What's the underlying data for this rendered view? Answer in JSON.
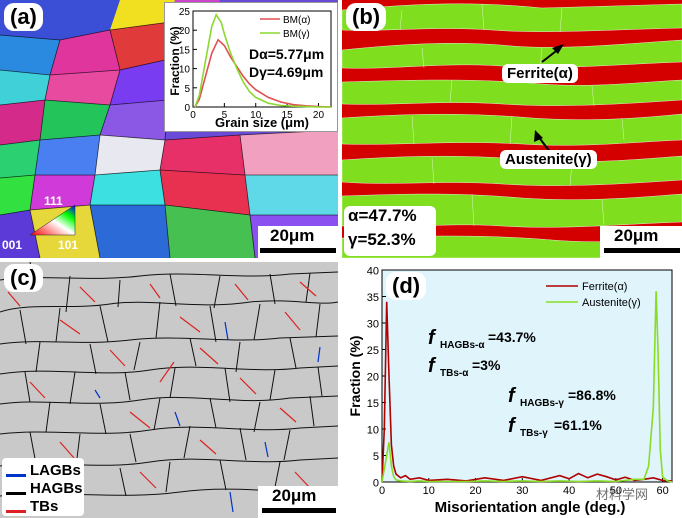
{
  "panels": {
    "a": {
      "label": "(a)",
      "inset": {
        "ylabel": "Fraction (%)",
        "xlabel": "Grain size (μm)",
        "yticks": [
          "0",
          "5",
          "10",
          "15",
          "20",
          "25"
        ],
        "xticks": [
          "0",
          "5",
          "10",
          "15",
          "20"
        ],
        "legend": [
          "BM(α)",
          "BM(γ)"
        ],
        "d_alpha": "Dα=5.77μm",
        "d_gamma": "Dγ=4.69μm"
      },
      "ipf": {
        "top": "111",
        "left": "001",
        "right": "101"
      },
      "scale": "20μm"
    },
    "b": {
      "label": "(b)",
      "ferrite_label": "Ferrite(α)",
      "austenite_label": "Austenite(γ)",
      "alpha_frac": "α=47.7%",
      "gamma_frac": "γ=52.3%",
      "scale": "20μm"
    },
    "c": {
      "label": "(c)",
      "legend": [
        "LAGBs",
        "HAGBs",
        "TBs"
      ],
      "scale": "20μm"
    },
    "d": {
      "label": "(d)",
      "legend": [
        "Ferrite(α)",
        "Austenite(γ)"
      ],
      "annotations": {
        "f_hagbs_alpha": "=43.7%",
        "f_tbs_alpha": "=3%",
        "f_hagbs_gamma": "=86.8%",
        "f_tbs_gamma": "=61.1%",
        "sub_hagbs_alpha": "HAGBs-α",
        "sub_tbs_alpha": "TBs-α",
        "sub_hagbs_gamma": "HAGBs-γ",
        "sub_tbs_gamma": "TBs-γ",
        "f": "f"
      },
      "watermark": "材料学网"
    }
  },
  "colors": {
    "ferrite": "#d40000",
    "austenite": "#7fdf1f",
    "lagb": "#0033cc",
    "hagb": "#000000",
    "tb": "#dd2222",
    "chart_bg": "#dff4fb"
  },
  "chart_data": [
    {
      "type": "line",
      "xlabel": "Grain size (μm)",
      "ylabel": "Fraction (%)",
      "xlim": [
        0,
        22
      ],
      "ylim": [
        0,
        25
      ],
      "series": [
        {
          "name": "BM(α)",
          "color": "#e05050",
          "x": [
            0.3,
            1,
            2,
            3,
            4,
            5,
            6,
            7,
            8,
            9,
            10,
            12,
            14,
            16,
            18,
            20,
            22
          ],
          "y": [
            0,
            2,
            8,
            14,
            17.5,
            16,
            13,
            10.5,
            8,
            6,
            4.5,
            2.5,
            1.3,
            0.6,
            0.3,
            0.1,
            0
          ]
        },
        {
          "name": "BM(γ)",
          "color": "#8cd830",
          "x": [
            0.3,
            1,
            2,
            3,
            3.7,
            4.5,
            5,
            6,
            7,
            8,
            9,
            10,
            12,
            14,
            16,
            18,
            20,
            22
          ],
          "y": [
            0,
            3,
            12,
            21,
            24,
            22,
            19,
            14,
            10,
            6.5,
            4,
            2.5,
            1,
            0.4,
            0.2,
            0.1,
            0,
            0
          ]
        }
      ]
    },
    {
      "type": "line",
      "xlabel": "Misorientation angle (deg.)",
      "ylabel": "Fraction (%)",
      "xlim": [
        0,
        62
      ],
      "ylim": [
        0,
        40
      ],
      "xticks": [
        0,
        10,
        20,
        30,
        40,
        50,
        60
      ],
      "yticks": [
        0,
        5,
        10,
        15,
        20,
        25,
        30,
        35,
        40
      ],
      "series": [
        {
          "name": "Ferrite(α)",
          "color": "#b00000",
          "x": [
            0,
            0.5,
            1,
            1.5,
            2,
            2.5,
            3,
            4,
            5,
            6,
            8,
            10,
            14,
            18,
            22,
            26,
            30,
            34,
            38,
            40,
            42,
            44,
            46,
            48,
            50,
            52,
            54,
            56,
            58,
            60,
            62
          ],
          "y": [
            0,
            10,
            34,
            20,
            7,
            3,
            1.5,
            0.8,
            1.2,
            0.5,
            0.8,
            0.3,
            0.5,
            0.2,
            0.8,
            0.3,
            1.0,
            0.3,
            1.2,
            0.6,
            1.6,
            0.8,
            1.5,
            1.0,
            0.4,
            0.9,
            0.3,
            0.5,
            0.8,
            0.3,
            0.2
          ]
        },
        {
          "name": "Austenite(γ)",
          "color": "#88dd22",
          "x": [
            0,
            1,
            1.5,
            2,
            2.5,
            3,
            4,
            6,
            8,
            10,
            14,
            18,
            22,
            26,
            30,
            34,
            38,
            42,
            46,
            50,
            54,
            56,
            57,
            58,
            58.6,
            59,
            59.5,
            60,
            61,
            62
          ],
          "y": [
            0,
            5,
            7.5,
            3,
            1,
            0.4,
            0.2,
            0.1,
            0.2,
            0.1,
            0.1,
            0.1,
            0.2,
            0.1,
            0.2,
            0.1,
            0.2,
            0.1,
            0.2,
            0.1,
            0.5,
            0.5,
            3,
            14,
            36,
            25,
            6,
            1,
            0.2,
            0
          ]
        }
      ]
    }
  ]
}
